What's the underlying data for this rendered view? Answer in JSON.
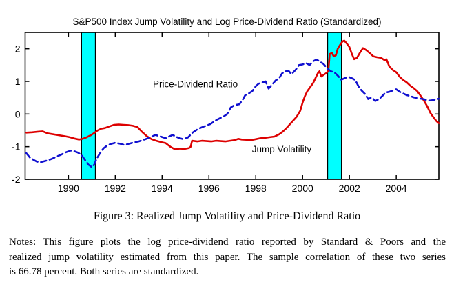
{
  "chart_data": {
    "type": "line",
    "title": "S&P500 Index Jump Volatility and Log Price-Dividend Ratio (Standardized)",
    "xlim": [
      1988.15,
      2005.82
    ],
    "ylim": [
      -2,
      2.5
    ],
    "xticks": [
      1990,
      1992,
      1994,
      1996,
      1998,
      2000,
      2002,
      2004
    ],
    "yticks": [
      -2,
      -1,
      0,
      1,
      2
    ],
    "grid": false,
    "legend_position": "none",
    "band_color": "#00ffff",
    "recession_bands": [
      {
        "from": 1990.56,
        "to": 1991.15
      },
      {
        "from": 2001.07,
        "to": 2001.66
      }
    ],
    "series": [
      {
        "name": "Jump Volatility",
        "color": "#dd0000",
        "style": "solid",
        "points": [
          [
            1988.2,
            -0.57
          ],
          [
            1988.45,
            -0.56
          ],
          [
            1988.7,
            -0.54
          ],
          [
            1988.9,
            -0.53
          ],
          [
            1989.1,
            -0.59
          ],
          [
            1989.35,
            -0.62
          ],
          [
            1989.6,
            -0.65
          ],
          [
            1989.85,
            -0.68
          ],
          [
            1990.05,
            -0.71
          ],
          [
            1990.25,
            -0.75
          ],
          [
            1990.45,
            -0.78
          ],
          [
            1990.6,
            -0.76
          ],
          [
            1990.75,
            -0.72
          ],
          [
            1990.95,
            -0.65
          ],
          [
            1991.1,
            -0.58
          ],
          [
            1991.25,
            -0.5
          ],
          [
            1991.4,
            -0.45
          ],
          [
            1991.55,
            -0.43
          ],
          [
            1991.75,
            -0.38
          ],
          [
            1991.95,
            -0.33
          ],
          [
            1992.15,
            -0.32
          ],
          [
            1992.35,
            -0.33
          ],
          [
            1992.55,
            -0.34
          ],
          [
            1992.75,
            -0.36
          ],
          [
            1992.95,
            -0.4
          ],
          [
            1993.15,
            -0.55
          ],
          [
            1993.35,
            -0.68
          ],
          [
            1993.55,
            -0.77
          ],
          [
            1993.75,
            -0.82
          ],
          [
            1993.95,
            -0.86
          ],
          [
            1994.15,
            -0.89
          ],
          [
            1994.35,
            -1.0
          ],
          [
            1994.55,
            -1.08
          ],
          [
            1994.75,
            -1.06
          ],
          [
            1994.95,
            -1.07
          ],
          [
            1995.15,
            -1.04
          ],
          [
            1995.22,
            -1.0
          ],
          [
            1995.28,
            -0.82
          ],
          [
            1995.5,
            -0.84
          ],
          [
            1995.7,
            -0.82
          ],
          [
            1995.9,
            -0.83
          ],
          [
            1996.1,
            -0.84
          ],
          [
            1996.3,
            -0.82
          ],
          [
            1996.5,
            -0.83
          ],
          [
            1996.7,
            -0.84
          ],
          [
            1996.9,
            -0.82
          ],
          [
            1997.1,
            -0.8
          ],
          [
            1997.25,
            -0.76
          ],
          [
            1997.4,
            -0.78
          ],
          [
            1997.6,
            -0.79
          ],
          [
            1997.8,
            -0.8
          ],
          [
            1998.0,
            -0.77
          ],
          [
            1998.2,
            -0.74
          ],
          [
            1998.4,
            -0.73
          ],
          [
            1998.6,
            -0.71
          ],
          [
            1998.8,
            -0.69
          ],
          [
            1999.0,
            -0.62
          ],
          [
            1999.15,
            -0.54
          ],
          [
            1999.3,
            -0.44
          ],
          [
            1999.45,
            -0.32
          ],
          [
            1999.6,
            -0.2
          ],
          [
            1999.75,
            -0.08
          ],
          [
            1999.9,
            0.1
          ],
          [
            2000.0,
            0.35
          ],
          [
            2000.1,
            0.55
          ],
          [
            2000.2,
            0.7
          ],
          [
            2000.3,
            0.8
          ],
          [
            2000.45,
            0.95
          ],
          [
            2000.55,
            1.1
          ],
          [
            2000.65,
            1.25
          ],
          [
            2000.72,
            1.31
          ],
          [
            2000.8,
            1.15
          ],
          [
            2000.9,
            1.2
          ],
          [
            2001.0,
            1.25
          ],
          [
            2001.1,
            1.32
          ],
          [
            2001.16,
            1.84
          ],
          [
            2001.25,
            1.87
          ],
          [
            2001.33,
            1.77
          ],
          [
            2001.42,
            1.8
          ],
          [
            2001.5,
            2.0
          ],
          [
            2001.6,
            2.12
          ],
          [
            2001.7,
            2.22
          ],
          [
            2001.78,
            2.25
          ],
          [
            2001.9,
            2.15
          ],
          [
            2002.0,
            2.05
          ],
          [
            2002.1,
            1.85
          ],
          [
            2002.2,
            1.68
          ],
          [
            2002.32,
            1.72
          ],
          [
            2002.45,
            1.88
          ],
          [
            2002.58,
            2.02
          ],
          [
            2002.72,
            1.96
          ],
          [
            2002.88,
            1.86
          ],
          [
            2003.02,
            1.77
          ],
          [
            2003.18,
            1.74
          ],
          [
            2003.35,
            1.72
          ],
          [
            2003.5,
            1.65
          ],
          [
            2003.58,
            1.68
          ],
          [
            2003.7,
            1.46
          ],
          [
            2003.85,
            1.35
          ],
          [
            2004.0,
            1.28
          ],
          [
            2004.15,
            1.14
          ],
          [
            2004.3,
            1.04
          ],
          [
            2004.45,
            0.97
          ],
          [
            2004.6,
            0.87
          ],
          [
            2004.75,
            0.79
          ],
          [
            2004.9,
            0.7
          ],
          [
            2005.05,
            0.55
          ],
          [
            2005.18,
            0.41
          ],
          [
            2005.32,
            0.24
          ],
          [
            2005.46,
            0.03
          ],
          [
            2005.6,
            -0.11
          ],
          [
            2005.72,
            -0.22
          ],
          [
            2005.82,
            -0.28
          ]
        ]
      },
      {
        "name": "Price-Dividend Ratio",
        "color": "#1010d0",
        "style": "dashed",
        "points": [
          [
            1988.2,
            -1.2
          ],
          [
            1988.35,
            -1.33
          ],
          [
            1988.5,
            -1.4
          ],
          [
            1988.65,
            -1.46
          ],
          [
            1988.8,
            -1.48
          ],
          [
            1989.0,
            -1.44
          ],
          [
            1989.15,
            -1.41
          ],
          [
            1989.3,
            -1.37
          ],
          [
            1989.5,
            -1.3
          ],
          [
            1989.7,
            -1.24
          ],
          [
            1989.9,
            -1.17
          ],
          [
            1990.1,
            -1.12
          ],
          [
            1990.25,
            -1.14
          ],
          [
            1990.4,
            -1.18
          ],
          [
            1990.55,
            -1.25
          ],
          [
            1990.7,
            -1.4
          ],
          [
            1990.85,
            -1.55
          ],
          [
            1991.0,
            -1.63
          ],
          [
            1991.1,
            -1.55
          ],
          [
            1991.2,
            -1.37
          ],
          [
            1991.35,
            -1.2
          ],
          [
            1991.5,
            -1.05
          ],
          [
            1991.65,
            -0.97
          ],
          [
            1991.8,
            -0.92
          ],
          [
            1992.0,
            -0.88
          ],
          [
            1992.2,
            -0.91
          ],
          [
            1992.4,
            -0.95
          ],
          [
            1992.6,
            -0.91
          ],
          [
            1992.8,
            -0.87
          ],
          [
            1993.0,
            -0.84
          ],
          [
            1993.25,
            -0.78
          ],
          [
            1993.4,
            -0.74
          ],
          [
            1993.55,
            -0.7
          ],
          [
            1993.7,
            -0.64
          ],
          [
            1993.9,
            -0.68
          ],
          [
            1994.15,
            -0.74
          ],
          [
            1994.45,
            -0.64
          ],
          [
            1994.7,
            -0.73
          ],
          [
            1994.9,
            -0.77
          ],
          [
            1995.1,
            -0.72
          ],
          [
            1995.3,
            -0.57
          ],
          [
            1995.55,
            -0.45
          ],
          [
            1995.76,
            -0.39
          ],
          [
            1996.05,
            -0.31
          ],
          [
            1996.35,
            -0.17
          ],
          [
            1996.64,
            -0.07
          ],
          [
            1996.78,
            0.0
          ],
          [
            1996.93,
            0.2
          ],
          [
            1997.08,
            0.27
          ],
          [
            1997.3,
            0.3
          ],
          [
            1997.45,
            0.45
          ],
          [
            1997.55,
            0.58
          ],
          [
            1997.7,
            0.63
          ],
          [
            1997.85,
            0.7
          ],
          [
            1998.0,
            0.85
          ],
          [
            1998.12,
            0.93
          ],
          [
            1998.28,
            0.97
          ],
          [
            1998.42,
            1.0
          ],
          [
            1998.55,
            0.78
          ],
          [
            1998.7,
            0.9
          ],
          [
            1998.85,
            1.03
          ],
          [
            1999.0,
            1.1
          ],
          [
            1999.13,
            1.25
          ],
          [
            1999.28,
            1.31
          ],
          [
            1999.42,
            1.31
          ],
          [
            1999.52,
            1.22
          ],
          [
            1999.7,
            1.35
          ],
          [
            1999.85,
            1.5
          ],
          [
            2000.0,
            1.52
          ],
          [
            2000.15,
            1.56
          ],
          [
            2000.3,
            1.5
          ],
          [
            2000.45,
            1.62
          ],
          [
            2000.6,
            1.67
          ],
          [
            2000.75,
            1.6
          ],
          [
            2000.9,
            1.53
          ],
          [
            2001.05,
            1.4
          ],
          [
            2001.2,
            1.31
          ],
          [
            2001.35,
            1.28
          ],
          [
            2001.5,
            1.18
          ],
          [
            2001.65,
            1.05
          ],
          [
            2001.8,
            1.1
          ],
          [
            2001.95,
            1.14
          ],
          [
            2002.1,
            1.1
          ],
          [
            2002.25,
            1.04
          ],
          [
            2002.4,
            0.83
          ],
          [
            2002.52,
            0.72
          ],
          [
            2002.66,
            0.62
          ],
          [
            2002.8,
            0.46
          ],
          [
            2002.95,
            0.51
          ],
          [
            2003.1,
            0.4
          ],
          [
            2003.25,
            0.45
          ],
          [
            2003.4,
            0.55
          ],
          [
            2003.55,
            0.66
          ],
          [
            2003.7,
            0.68
          ],
          [
            2003.85,
            0.72
          ],
          [
            2004.0,
            0.76
          ],
          [
            2004.15,
            0.68
          ],
          [
            2004.3,
            0.63
          ],
          [
            2004.45,
            0.58
          ],
          [
            2004.6,
            0.55
          ],
          [
            2004.75,
            0.51
          ],
          [
            2004.9,
            0.49
          ],
          [
            2005.05,
            0.47
          ],
          [
            2005.2,
            0.45
          ],
          [
            2005.35,
            0.41
          ],
          [
            2005.5,
            0.42
          ],
          [
            2005.65,
            0.44
          ],
          [
            2005.82,
            0.47
          ]
        ]
      }
    ],
    "annotations": [
      {
        "text": "Price-Dividend Ratio",
        "x": 1993.61,
        "y": 0.93,
        "anchor": "start"
      },
      {
        "text": "Jump Volatility",
        "x": 1997.84,
        "y": -1.07,
        "anchor": "start"
      }
    ]
  },
  "caption": "Figure 3: Realized Jump Volatility and Price-Dividend Ratio",
  "notes": {
    "line1": "Notes: This figure plots the log price-dividend ratio reported by Standard & Poors and the",
    "line2": "realized jump volatility estimated from this paper. The sample correlation of these two series",
    "line3": "is 66.78 percent. Both series are standardized."
  }
}
